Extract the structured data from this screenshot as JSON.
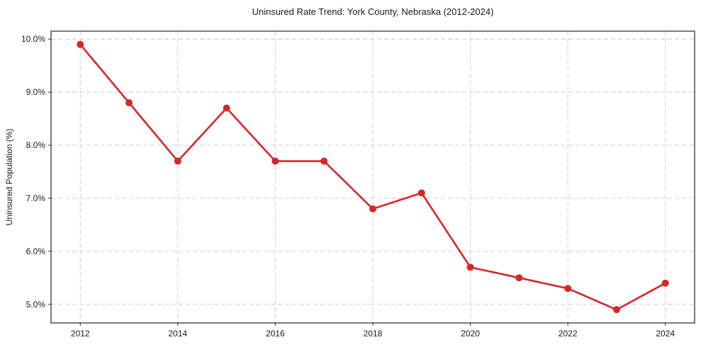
{
  "chart": {
    "title": "Uninsured Rate Trend: York County, Nebraska (2012-2024)",
    "ylabel": "Uninsured Population (%)"
  },
  "chart_data": {
    "type": "line",
    "title": "Uninsured Rate Trend: York County, Nebraska (2012-2024)",
    "xlabel": "",
    "ylabel": "Uninsured Population (%)",
    "x": [
      2012,
      2013,
      2014,
      2015,
      2016,
      2017,
      2018,
      2019,
      2020,
      2021,
      2022,
      2023,
      2024
    ],
    "series": [
      {
        "name": "Uninsured Population (%)",
        "values": [
          9.9,
          8.8,
          7.7,
          8.7,
          7.7,
          7.7,
          6.8,
          7.1,
          5.7,
          5.5,
          5.3,
          4.9,
          5.4
        ]
      }
    ],
    "x_ticks": [
      2012,
      2014,
      2016,
      2018,
      2020,
      2022,
      2024
    ],
    "y_ticks": [
      5.0,
      6.0,
      7.0,
      8.0,
      9.0,
      10.0
    ],
    "y_tick_suffix": "%",
    "y_tick_decimals": 1,
    "xlim": [
      2011.4,
      2024.6
    ],
    "ylim": [
      4.65,
      10.15
    ],
    "grid": true,
    "grid_style": "dashed",
    "legend": "none",
    "marker": "circle"
  },
  "colors": {
    "line": "#d62728",
    "marker": "#d62728",
    "grid": "#cccccc",
    "spine": "#262626",
    "tick_text": "#1a1a1a",
    "background": "#ffffff"
  }
}
